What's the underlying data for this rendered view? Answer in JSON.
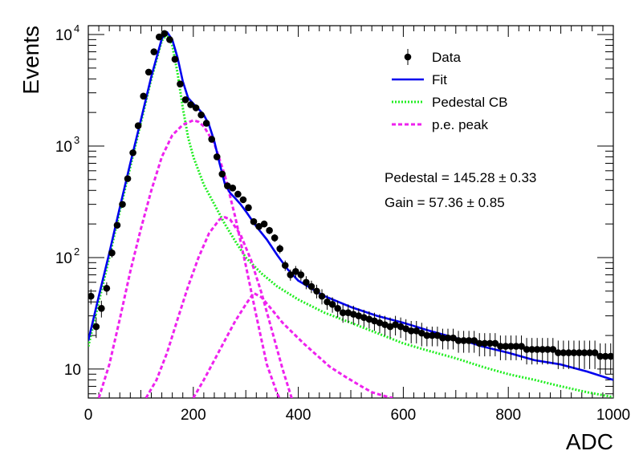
{
  "chart_data": {
    "type": "scatter",
    "xlabel": "ADC",
    "ylabel": "Events",
    "xlim": [
      0,
      1000
    ],
    "ylim": [
      5.5,
      12000
    ],
    "y_scale": "log",
    "grid": false,
    "legend_position": "top-right",
    "x_ticks": [
      {
        "value": 0,
        "label": "0"
      },
      {
        "value": 200,
        "label": "200"
      },
      {
        "value": 400,
        "label": "400"
      },
      {
        "value": 600,
        "label": "600"
      },
      {
        "value": 800,
        "label": "800"
      },
      {
        "value": 1000,
        "label": "1000"
      }
    ],
    "y_ticks": [
      {
        "value": 10,
        "base": "10",
        "exp": ""
      },
      {
        "value": 100,
        "base": "10",
        "exp": "2"
      },
      {
        "value": 1000,
        "base": "10",
        "exp": "3"
      },
      {
        "value": 10000,
        "base": "10",
        "exp": "4"
      }
    ],
    "legend": [
      {
        "label": "Data",
        "style": "marker",
        "color": "#000000"
      },
      {
        "label": "Fit",
        "style": "solid",
        "color": "#0000ee"
      },
      {
        "label": "Pedestal CB",
        "style": "dotted",
        "color": "#22ee22"
      },
      {
        "label": "p.e. peak",
        "style": "dashed",
        "color": "#ee22ee"
      }
    ],
    "annotations": [
      "Pedestal = 145.28 ± 0.33",
      "Gain = 57.36 ± 0.85"
    ],
    "series": [
      {
        "name": "Data",
        "type": "scatter",
        "color": "#000000",
        "x": [
          5,
          15,
          25,
          35,
          45,
          55,
          65,
          75,
          85,
          95,
          105,
          115,
          125,
          135,
          145,
          155,
          165,
          175,
          185,
          195,
          205,
          215,
          225,
          235,
          245,
          255,
          265,
          275,
          285,
          295,
          305,
          315,
          325,
          335,
          345,
          355,
          365,
          375,
          385,
          395,
          405,
          415,
          425,
          435,
          445,
          455,
          465,
          475,
          485,
          495,
          505,
          515,
          525,
          535,
          545,
          555,
          565,
          575,
          585,
          595,
          605,
          615,
          625,
          635,
          645,
          655,
          665,
          675,
          685,
          695,
          705,
          715,
          725,
          735,
          745,
          755,
          765,
          775,
          785,
          795,
          805,
          815,
          825,
          835,
          845,
          855,
          865,
          875,
          885,
          895,
          905,
          915,
          925,
          935,
          945,
          955,
          965,
          975,
          985,
          995
        ],
        "y": [
          45,
          24,
          35,
          53,
          110,
          195,
          300,
          510,
          870,
          1520,
          2800,
          4600,
          7000,
          9500,
          10200,
          9000,
          6000,
          3600,
          2600,
          2350,
          2200,
          1900,
          1600,
          1150,
          800,
          560,
          440,
          420,
          370,
          330,
          280,
          210,
          190,
          200,
          175,
          150,
          120,
          85,
          70,
          75,
          70,
          60,
          55,
          50,
          45,
          40,
          38,
          35,
          32,
          32,
          31,
          30,
          29,
          28,
          27,
          26,
          25,
          24,
          25,
          24,
          23,
          22,
          22,
          21,
          20,
          20,
          20,
          19,
          19,
          19,
          18,
          18,
          18,
          18,
          17,
          17,
          17,
          17,
          16,
          16,
          16,
          16,
          16,
          15,
          15,
          15,
          15,
          15,
          15,
          14,
          14,
          14,
          14,
          14,
          14,
          14,
          14,
          13,
          13,
          13
        ],
        "errors": [
          7,
          5,
          6,
          7,
          10,
          14,
          17,
          23,
          30,
          39,
          53,
          68,
          84,
          97,
          101,
          95,
          77,
          60,
          51,
          48,
          47,
          44,
          40,
          34,
          28,
          24,
          21,
          20,
          19,
          18,
          17,
          14,
          14,
          14,
          13,
          12,
          11,
          9,
          8,
          9,
          8,
          8,
          7,
          7,
          7,
          6,
          6,
          6,
          6,
          6,
          6,
          5,
          5,
          5,
          5,
          5,
          5,
          5,
          5,
          5,
          5,
          5,
          5,
          5,
          4,
          4,
          4,
          4,
          4,
          4,
          4,
          4,
          4,
          4,
          4,
          4,
          4,
          4,
          4,
          4,
          4,
          4,
          4,
          4,
          4,
          4,
          4,
          4,
          4,
          4,
          4,
          4,
          4,
          4,
          4,
          4,
          4,
          4,
          4,
          4
        ]
      },
      {
        "name": "Fit",
        "type": "line",
        "color": "#0000ee",
        "x": [
          0,
          20,
          40,
          60,
          80,
          100,
          120,
          140,
          150,
          160,
          170,
          180,
          190,
          200,
          210,
          220,
          230,
          240,
          250,
          260,
          270,
          280,
          290,
          300,
          320,
          340,
          360,
          380,
          400,
          450,
          500,
          550,
          600,
          650,
          700,
          750,
          800,
          850,
          900,
          950,
          1000
        ],
        "y": [
          18,
          45,
          110,
          280,
          700,
          1700,
          4200,
          9200,
          10500,
          9000,
          6200,
          3800,
          2700,
          2400,
          2150,
          1900,
          1550,
          1100,
          700,
          460,
          380,
          340,
          300,
          260,
          190,
          145,
          105,
          78,
          62,
          45,
          36,
          30,
          26,
          22,
          19,
          16,
          14,
          12,
          11,
          9.5,
          8
        ]
      },
      {
        "name": "Pedestal CB",
        "type": "line",
        "color": "#22ee22",
        "x": [
          0,
          20,
          40,
          60,
          80,
          100,
          120,
          140,
          150,
          160,
          170,
          180,
          190,
          200,
          220,
          240,
          260,
          280,
          300,
          330,
          360,
          400,
          450,
          500,
          550,
          600,
          650,
          700,
          750,
          800,
          850,
          900,
          950,
          1000
        ],
        "y": [
          16,
          40,
          100,
          260,
          650,
          1600,
          4000,
          8800,
          10000,
          8000,
          4500,
          2200,
          1200,
          800,
          450,
          300,
          200,
          140,
          100,
          72,
          55,
          42,
          32,
          26,
          21,
          17,
          14.5,
          12.5,
          10.5,
          9,
          8,
          7,
          6.2,
          5.6
        ]
      },
      {
        "name": "p.e. peak",
        "type": "line",
        "color": "#ee22ee",
        "segments": [
          {
            "x": [
              20,
              40,
              60,
              80,
              100,
              120,
              140,
              160,
              180,
              200,
              210,
              220,
              240,
              260,
              280,
              300,
              320,
              340,
              360,
              380,
              400
            ],
            "y": [
              5.5,
              11,
              28,
              75,
              180,
              400,
              800,
              1250,
              1550,
              1700,
              1650,
              1500,
              1050,
              550,
              230,
              85,
              30,
              11,
              6,
              4,
              3
            ]
          },
          {
            "x": [
              110,
              130,
              150,
              170,
              190,
              210,
              230,
              250,
              260,
              270,
              290,
              310,
              330,
              350,
              370,
              390,
              410
            ],
            "y": [
              5.5,
              8,
              14,
              28,
              55,
              100,
              165,
              220,
              230,
              220,
              160,
              95,
              48,
              22,
              10,
              5,
              3
            ]
          },
          {
            "x": [
              200,
              220,
              240,
              260,
              280,
              300,
              315,
              330,
              350,
              370,
              390,
              410,
              430,
              460,
              490,
              520,
              540,
              560,
              580
            ],
            "y": [
              5.5,
              8,
              12,
              18,
              27,
              38,
              48,
              44,
              34,
              26,
              21,
              17,
              14,
              10.5,
              8.5,
              7,
              6.2,
              5.8,
              5.5
            ]
          }
        ]
      }
    ]
  }
}
